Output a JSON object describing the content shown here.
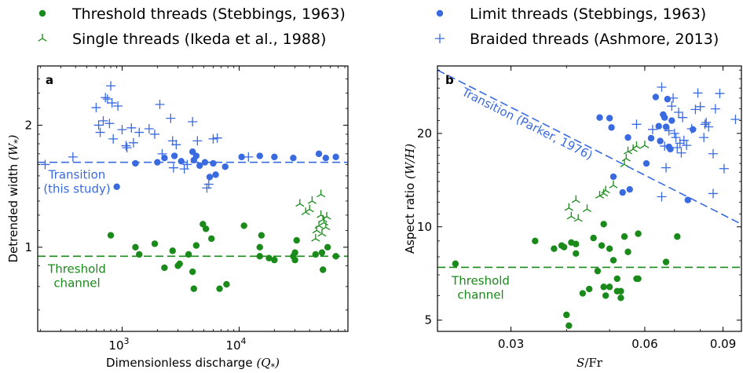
{
  "colors": {
    "threshold": "#1a8a1a",
    "limit": "#3a6ae0",
    "axis": "#000000"
  },
  "legend": {
    "entries": [
      {
        "label": "Threshold threads (Stebbings, 1963)",
        "marker": "dot",
        "color": "#1a8a1a"
      },
      {
        "label": "Limit threads (Stebbings, 1963)",
        "marker": "dot",
        "color": "#3a6ae0"
      },
      {
        "label": "Single threads (Ikeda et al., 1988)",
        "marker": "tri",
        "color": "#1a8a1a"
      },
      {
        "label": "Braided threads (Ashmore, 2013)",
        "marker": "plus",
        "color": "#3a6ae0"
      }
    ]
  },
  "chart_data": [
    {
      "panel": "a",
      "type": "scatter",
      "xlabel": "Dimensionless discharge",
      "xlabel_var": "(Q",
      "xlabel_sub": "*",
      "xlabel_close": ")",
      "ylabel": "Detrended width",
      "ylabel_var": "(W",
      "ylabel_sub": "*",
      "ylabel_close": ")",
      "x_scale": "log",
      "y_scale": "log",
      "xlim": [
        190,
        85000
      ],
      "ylim": [
        0.62,
        2.8
      ],
      "xticks": [
        {
          "value": 1000,
          "base": "10",
          "exp": "3"
        },
        {
          "value": 10000,
          "base": "10",
          "exp": "4"
        }
      ],
      "yticks": [
        {
          "value": 1,
          "label": "1"
        },
        {
          "value": 2,
          "label": "2"
        }
      ],
      "hlines": [
        {
          "y": 1.62,
          "color": "#3a6ae0",
          "label_lines": [
            "Transition",
            "(this study)"
          ]
        },
        {
          "y": 0.95,
          "color": "#1a8a1a",
          "label_lines": [
            "Threshold",
            "channel"
          ]
        }
      ],
      "series": [
        {
          "name": "Threshold threads (Stebbings, 1963)",
          "marker": "dot",
          "color": "#1a8a1a",
          "points": [
            [
              800,
              1.07
            ],
            [
              1300,
              1.0
            ],
            [
              1400,
              0.96
            ],
            [
              1900,
              1.02
            ],
            [
              2300,
              0.89
            ],
            [
              2700,
              0.98
            ],
            [
              3000,
              0.9
            ],
            [
              3100,
              0.91
            ],
            [
              3700,
              0.96
            ],
            [
              4000,
              0.87
            ],
            [
              4100,
              0.79
            ],
            [
              4300,
              1.01
            ],
            [
              4900,
              1.14
            ],
            [
              5200,
              1.11
            ],
            [
              5800,
              1.05
            ],
            [
              6800,
              0.79
            ],
            [
              7800,
              0.81
            ],
            [
              11000,
              1.13
            ],
            [
              15000,
              1.0
            ],
            [
              15000,
              0.95
            ],
            [
              15500,
              1.07
            ],
            [
              18000,
              0.94
            ],
            [
              20000,
              0.93
            ],
            [
              29000,
              0.95
            ],
            [
              30000,
              0.97
            ],
            [
              30000,
              0.93
            ],
            [
              31000,
              1.04
            ],
            [
              45000,
              0.96
            ],
            [
              51000,
              0.97
            ],
            [
              52000,
              0.88
            ],
            [
              57000,
              1.0
            ],
            [
              67000,
              0.95
            ]
          ]
        },
        {
          "name": "Limit threads (Stebbings, 1963)",
          "marker": "dot",
          "color": "#3a6ae0",
          "points": [
            [
              900,
              1.41
            ],
            [
              1300,
              1.61
            ],
            [
              2000,
              1.62
            ],
            [
              2300,
              1.66
            ],
            [
              2800,
              1.68
            ],
            [
              3200,
              1.63
            ],
            [
              4000,
              1.72
            ],
            [
              4100,
              1.64
            ],
            [
              4300,
              1.68
            ],
            [
              4600,
              1.59
            ],
            [
              5100,
              1.62
            ],
            [
              5600,
              1.49
            ],
            [
              6000,
              1.61
            ],
            [
              6300,
              1.51
            ],
            [
              7600,
              1.58
            ],
            [
              10500,
              1.67
            ],
            [
              15000,
              1.68
            ],
            [
              20000,
              1.67
            ],
            [
              29000,
              1.66
            ],
            [
              48000,
              1.7
            ],
            [
              55000,
              1.66
            ],
            [
              67000,
              1.67
            ]
          ]
        },
        {
          "name": "Single threads (Ikeda et al., 1988)",
          "marker": "tri",
          "color": "#1a8a1a",
          "points": [
            [
              33000,
              1.28
            ],
            [
              37000,
              1.22
            ],
            [
              40000,
              1.24
            ],
            [
              42000,
              1.3
            ],
            [
              45000,
              1.05
            ],
            [
              46000,
              1.1
            ],
            [
              48000,
              1.13
            ],
            [
              50000,
              1.35
            ],
            [
              50000,
              1.2
            ],
            [
              51000,
              1.08
            ],
            [
              52000,
              1.17
            ],
            [
              53000,
              1.15
            ],
            [
              55000,
              1.12
            ],
            [
              56000,
              1.19
            ]
          ]
        },
        {
          "name": "Braided threads (Ashmore, 2013)",
          "marker": "plus",
          "color": "#3a6ae0",
          "points": [
            [
              220,
              1.6
            ],
            [
              380,
              1.67
            ],
            [
              600,
              2.21
            ],
            [
              630,
              2.0
            ],
            [
              650,
              1.92
            ],
            [
              690,
              2.05
            ],
            [
              720,
              2.34
            ],
            [
              750,
              2.32
            ],
            [
              780,
              2.02
            ],
            [
              800,
              2.5
            ],
            [
              820,
              2.27
            ],
            [
              840,
              1.85
            ],
            [
              920,
              2.23
            ],
            [
              1000,
              1.95
            ],
            [
              1080,
              1.78
            ],
            [
              1100,
              1.76
            ],
            [
              1200,
              1.97
            ],
            [
              1250,
              1.81
            ],
            [
              1400,
              1.92
            ],
            [
              1700,
              1.96
            ],
            [
              1900,
              1.9
            ],
            [
              2100,
              2.25
            ],
            [
              2200,
              1.7
            ],
            [
              2600,
              2.08
            ],
            [
              2700,
              1.83
            ],
            [
              2750,
              1.57
            ],
            [
              2900,
              1.79
            ],
            [
              3400,
              1.56
            ],
            [
              3600,
              1.6
            ],
            [
              4000,
              2.04
            ],
            [
              4400,
              1.83
            ],
            [
              5300,
              1.4
            ],
            [
              5500,
              1.43
            ],
            [
              6000,
              1.85
            ],
            [
              6500,
              1.86
            ],
            [
              12000,
              1.67
            ]
          ]
        }
      ]
    },
    {
      "panel": "b",
      "type": "scatter",
      "xlabel": "",
      "xlabel_var": "S",
      "xlabel_rest": "/Fr",
      "ylabel": "Aspect ratio",
      "ylabel_var": "(W/H)",
      "x_scale": "log",
      "y_scale": "log",
      "xlim": [
        0.0205,
        0.099
      ],
      "ylim": [
        4.6,
        33
      ],
      "xticks": [
        {
          "value": 0.03,
          "label": "0.03"
        },
        {
          "value": 0.06,
          "label": "0.06"
        },
        {
          "value": 0.09,
          "label": "0.09"
        }
      ],
      "yticks": [
        {
          "value": 5,
          "label": "5"
        },
        {
          "value": 10,
          "label": "10"
        },
        {
          "value": 20,
          "label": "20"
        }
      ],
      "transition_line": {
        "x": [
          0.0205,
          0.099
        ],
        "y": [
          32.0,
          10.2
        ],
        "label": "Transition (Parker, 1976)",
        "color": "#3a6ae0"
      },
      "hlines": [
        {
          "y": 7.4,
          "color": "#1a8a1a",
          "label_lines": [
            "Threshold",
            "channel"
          ]
        }
      ],
      "series": [
        {
          "name": "Threshold threads (Stebbings, 1963)",
          "marker": "dot",
          "color": "#1a8a1a",
          "points": [
            [
              0.0225,
              7.6
            ],
            [
              0.034,
              9.0
            ],
            [
              0.0375,
              8.5
            ],
            [
              0.039,
              8.7
            ],
            [
              0.0395,
              8.6
            ],
            [
              0.04,
              5.2
            ],
            [
              0.0405,
              4.8
            ],
            [
              0.041,
              8.9
            ],
            [
              0.042,
              8.8
            ],
            [
              0.042,
              8.2
            ],
            [
              0.0435,
              6.1
            ],
            [
              0.045,
              6.3
            ],
            [
              0.046,
              9.2
            ],
            [
              0.047,
              7.2
            ],
            [
              0.048,
              8.7
            ],
            [
              0.0485,
              6.4
            ],
            [
              0.0485,
              10.2
            ],
            [
              0.049,
              6.0
            ],
            [
              0.05,
              6.4
            ],
            [
              0.05,
              8.5
            ],
            [
              0.051,
              7.8
            ],
            [
              0.052,
              6.8
            ],
            [
              0.052,
              6.2
            ],
            [
              0.053,
              5.9
            ],
            [
              0.053,
              6.2
            ],
            [
              0.054,
              9.3
            ],
            [
              0.055,
              8.3
            ],
            [
              0.0575,
              6.8
            ],
            [
              0.058,
              6.8
            ],
            [
              0.058,
              9.5
            ],
            [
              0.067,
              7.7
            ],
            [
              0.071,
              9.3
            ]
          ]
        },
        {
          "name": "Limit threads (Stebbings, 1963)",
          "marker": "dot",
          "color": "#3a6ae0",
          "points": [
            [
              0.0475,
              22.5
            ],
            [
              0.05,
              22.4
            ],
            [
              0.0505,
              20.9
            ],
            [
              0.051,
              14.5
            ],
            [
              0.0535,
              12.9
            ],
            [
              0.055,
              19.4
            ],
            [
              0.0555,
              13.2
            ],
            [
              0.0605,
              16.0
            ],
            [
              0.062,
              19.3
            ],
            [
              0.0635,
              26.2
            ],
            [
              0.0645,
              21.1
            ],
            [
              0.065,
              18.9
            ],
            [
              0.066,
              23.0
            ],
            [
              0.0665,
              22.5
            ],
            [
              0.067,
              21.0
            ],
            [
              0.068,
              18.1
            ],
            [
              0.0685,
              17.8
            ],
            [
              0.0675,
              25.8
            ],
            [
              0.069,
              22.0
            ],
            [
              0.075,
              12.2
            ],
            [
              0.077,
              20.6
            ]
          ]
        },
        {
          "name": "Single threads (Ikeda et al., 1988)",
          "marker": "tri",
          "color": "#1a8a1a",
          "points": [
            [
              0.0405,
              11.5
            ],
            [
              0.041,
              10.8
            ],
            [
              0.042,
              12.2
            ],
            [
              0.0425,
              10.6
            ],
            [
              0.0445,
              11.4
            ],
            [
              0.0475,
              12.6
            ],
            [
              0.0485,
              12.8
            ],
            [
              0.049,
              13.1
            ],
            [
              0.051,
              13.6
            ],
            [
              0.054,
              15.9
            ],
            [
              0.0545,
              16.6
            ],
            [
              0.055,
              17.5
            ],
            [
              0.0565,
              17.8
            ],
            [
              0.0575,
              18.2
            ],
            [
              0.06,
              18.3
            ]
          ]
        },
        {
          "name": "Braided threads (Ashmore, 2013)",
          "marker": "plus",
          "color": "#3a6ae0",
          "points": [
            [
              0.0575,
              21.4
            ],
            [
              0.0625,
              20.6
            ],
            [
              0.0655,
              12.5
            ],
            [
              0.0655,
              28.2
            ],
            [
              0.0665,
              18.2
            ],
            [
              0.067,
              15.5
            ],
            [
              0.068,
              20.4
            ],
            [
              0.069,
              24.5
            ],
            [
              0.0695,
              26.0
            ],
            [
              0.07,
              20.0
            ],
            [
              0.0705,
              19.4
            ],
            [
              0.071,
              18.0
            ],
            [
              0.0715,
              23.4
            ],
            [
              0.072,
              18.6
            ],
            [
              0.0725,
              17.3
            ],
            [
              0.073,
              22.5
            ],
            [
              0.0735,
              19.0
            ],
            [
              0.0745,
              18.3
            ],
            [
              0.0765,
              20.7
            ],
            [
              0.078,
              23.9
            ],
            [
              0.079,
              27.0
            ],
            [
              0.08,
              24.4
            ],
            [
              0.0815,
              19.4
            ],
            [
              0.082,
              21.4
            ],
            [
              0.0825,
              21.7
            ],
            [
              0.0835,
              21.0
            ],
            [
              0.0855,
              17.2
            ],
            [
              0.0865,
              24.0
            ],
            [
              0.0885,
              26.9
            ],
            [
              0.0905,
              15.4
            ],
            [
              0.096,
              22.2
            ],
            [
              0.0855,
              12.8
            ]
          ]
        }
      ]
    }
  ]
}
